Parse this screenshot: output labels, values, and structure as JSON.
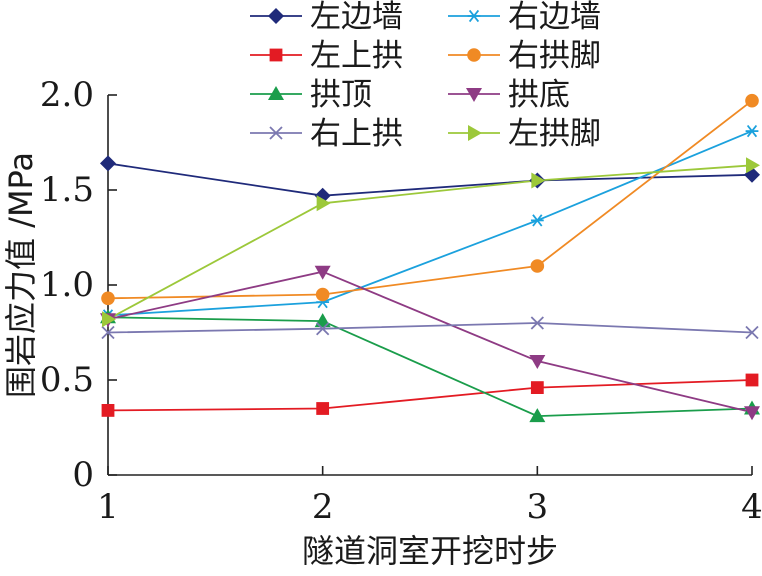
{
  "chart_data": {
    "type": "line",
    "xlabel": "隧道洞室开挖时步",
    "ylabel": "围岩应力值 /MPa",
    "x": [
      1,
      2,
      3,
      4
    ],
    "xlim": [
      1,
      4
    ],
    "ylim": [
      0,
      2.0
    ],
    "x_ticks": [
      "1",
      "2",
      "3",
      "4"
    ],
    "y_ticks": [
      "0",
      "0.5",
      "1.0",
      "1.5",
      "2.0"
    ],
    "y_tick_values": [
      0,
      0.5,
      1.0,
      1.5,
      2.0
    ],
    "grid": false,
    "legend_position": "top",
    "series": [
      {
        "name": "左边墙",
        "color": "#1f2a7a",
        "marker": "diamond",
        "values": [
          1.64,
          1.47,
          1.55,
          1.58
        ]
      },
      {
        "name": "右边墙",
        "color": "#1ba1dd",
        "marker": "asterisk",
        "values": [
          0.84,
          0.91,
          1.34,
          1.81
        ]
      },
      {
        "name": "左上拱",
        "color": "#e31b23",
        "marker": "square",
        "values": [
          0.34,
          0.35,
          0.46,
          0.5
        ]
      },
      {
        "name": "右拱脚",
        "color": "#f08a24",
        "marker": "circle",
        "values": [
          0.93,
          0.95,
          1.1,
          1.97
        ]
      },
      {
        "name": "拱顶",
        "color": "#1a9d4b",
        "marker": "triangle-up",
        "values": [
          0.83,
          0.81,
          0.31,
          0.35
        ]
      },
      {
        "name": "拱底",
        "color": "#8e3b84",
        "marker": "triangle-down",
        "values": [
          0.82,
          1.07,
          0.6,
          0.33
        ]
      },
      {
        "name": "右上拱",
        "color": "#7b78b0",
        "marker": "x",
        "values": [
          0.75,
          0.77,
          0.8,
          0.75
        ]
      },
      {
        "name": "左拱脚",
        "color": "#9cc83a",
        "marker": "triangle-right",
        "values": [
          0.82,
          1.43,
          1.55,
          1.63
        ]
      }
    ]
  }
}
